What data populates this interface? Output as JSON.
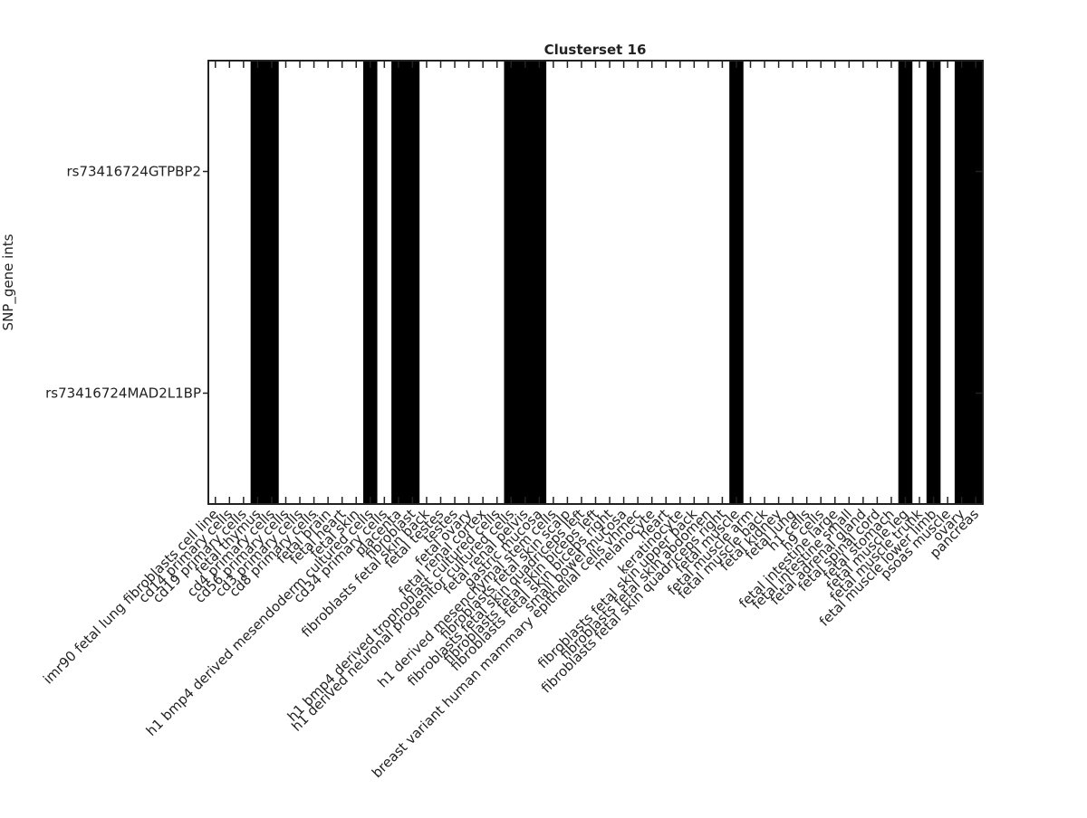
{
  "chart_data": {
    "type": "heatmap",
    "title": "Clusterset 16",
    "ylabel": "SNP_gene ints",
    "rows": [
      "rs73416724GTPBP2",
      "rs73416724MAD2L1BP"
    ],
    "columns": [
      "imr90 fetal lung fibroblasts cell line",
      "cd14 primary cells",
      "cd19 primary cells",
      "fetal thymus",
      "cd4 primary cells",
      "cd56 primary cells",
      "cd3 primary cells",
      "cd8 primary cells",
      "fetal brain",
      "fetal heart",
      "fetal skin",
      "h1 bmp4 derived mesendoderm cultured cells",
      "cd34 primary cells",
      "placenta",
      "fibroblast",
      "fibroblasts fetal skin back",
      "fetal testes",
      "testes",
      "fetal ovary",
      "fetal renal cortex",
      "h1 bmp4 derived trophoblast cultured cells",
      "h1 derived neuronal progenitor cultured cells",
      "fetal renal pelvis",
      "gastric mucosa",
      "h1 derived mesenchymal stem cells",
      "fibroblasts fetal skin scalp",
      "fibroblasts fetal skin quadriceps left",
      "fibroblasts fetal skin biceps left",
      "fibroblasts fetal skin biceps right",
      "small bowel mucosa",
      "breast variant human mammary epithelial cells vhmec",
      "melanocyte",
      "heart",
      "keratinocyte",
      "fibroblasts fetal skin upper back",
      "fibroblasts fetal skin abdomen",
      "fibroblasts fetal skin quadriceps right",
      "fetal muscle",
      "fetal muscle arm",
      "fetal muscle back",
      "fetal kidney",
      "fetal lung",
      "h1 cells",
      "h9 cells",
      "fetal intestine large",
      "fetal intestine small",
      "fetal adrenal gland",
      "fetal spinal cord",
      "fetal stomach",
      "fetal muscle leg",
      "fetal muscle trunk",
      "fetal muscle lower limb",
      "psoas muscle",
      "ovary",
      "pancreas"
    ],
    "z": [
      [
        0,
        0,
        0,
        1,
        1,
        0,
        0,
        0,
        0,
        0,
        0,
        1,
        0,
        1,
        1,
        0,
        0,
        0,
        0,
        0,
        0,
        1,
        1,
        1,
        0,
        0,
        0,
        0,
        0,
        0,
        0,
        0,
        0,
        0,
        0,
        0,
        0,
        1,
        0,
        0,
        0,
        0,
        0,
        0,
        0,
        0,
        0,
        0,
        0,
        1,
        0,
        1,
        0,
        1,
        1
      ],
      [
        0,
        0,
        0,
        1,
        1,
        0,
        0,
        0,
        0,
        0,
        0,
        1,
        0,
        1,
        1,
        0,
        0,
        0,
        0,
        0,
        0,
        1,
        1,
        1,
        0,
        0,
        0,
        0,
        0,
        0,
        0,
        0,
        0,
        0,
        0,
        0,
        0,
        1,
        0,
        0,
        0,
        0,
        0,
        0,
        0,
        0,
        0,
        0,
        0,
        1,
        0,
        1,
        0,
        1,
        1
      ]
    ],
    "colors": [
      "#ffffff",
      "#000000"
    ]
  }
}
